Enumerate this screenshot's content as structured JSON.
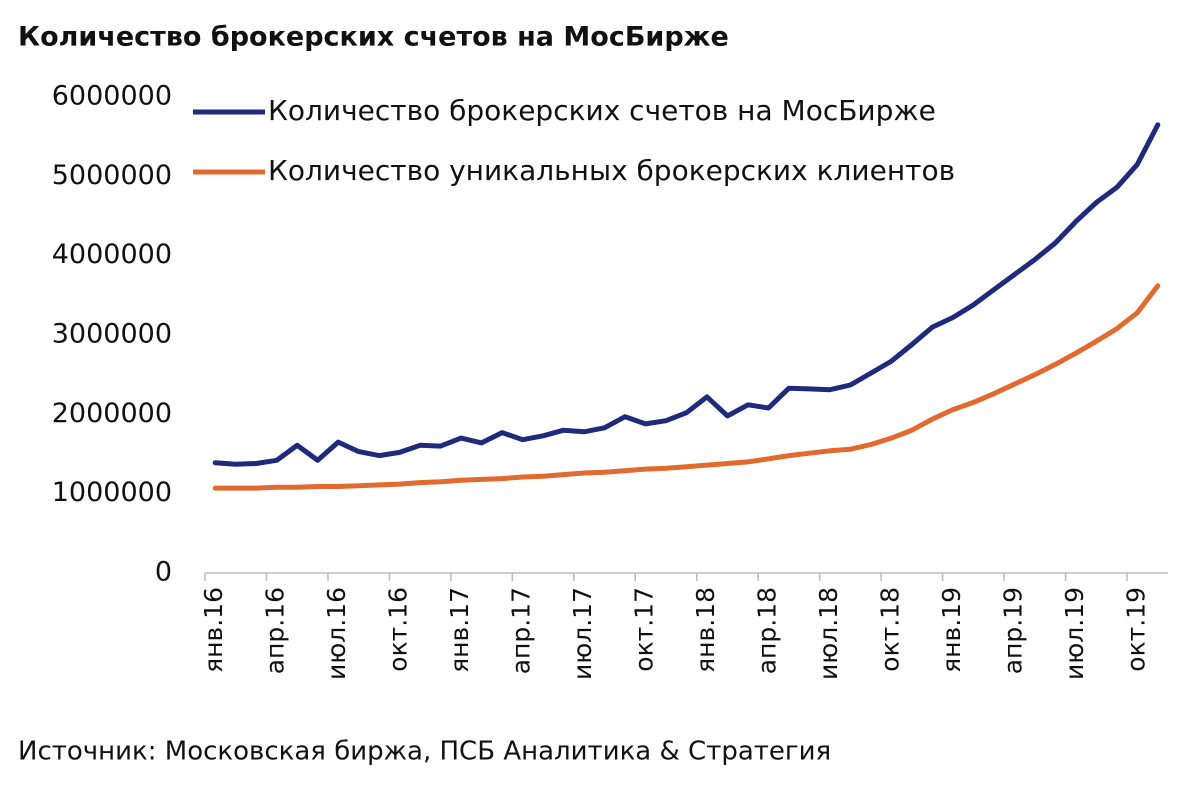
{
  "chart_data": {
    "type": "line",
    "title": "Количество брокерских счетов на МосБирже",
    "source": "Источник: Московская биржа, ПСБ Аналитика & Стратегия",
    "categories": [
      "янв.16",
      null,
      null,
      "апр.16",
      null,
      null,
      "июл.16",
      null,
      null,
      "окт.16",
      null,
      null,
      "янв.17",
      null,
      null,
      "апр.17",
      null,
      null,
      "июл.17",
      null,
      null,
      "окт.17",
      null,
      null,
      "янв.18",
      null,
      null,
      "апр.18",
      null,
      null,
      "июл.18",
      null,
      null,
      "окт.18",
      null,
      null,
      "янв.19",
      null,
      null,
      "апр.19",
      null,
      null,
      "июл.19",
      null,
      null,
      "окт.19",
      null
    ],
    "series": [
      {
        "name": "Количество брокерских счетов на МосБирже",
        "color": "#1f2a7c",
        "values": [
          1390000,
          1370000,
          1380000,
          1420000,
          1610000,
          1420000,
          1650000,
          1530000,
          1480000,
          1520000,
          1610000,
          1600000,
          1700000,
          1640000,
          1770000,
          1680000,
          1730000,
          1800000,
          1780000,
          1830000,
          1970000,
          1880000,
          1920000,
          2020000,
          2220000,
          1980000,
          2120000,
          2080000,
          2330000,
          2320000,
          2310000,
          2370000,
          2520000,
          2670000,
          2880000,
          3100000,
          3220000,
          3380000,
          3570000,
          3760000,
          3950000,
          4160000,
          4430000,
          4670000,
          4860000,
          5150000,
          5650000
        ]
      },
      {
        "name": "Количество уникальных брокерских клиентов",
        "color": "#e36a2e",
        "values": [
          1070000,
          1070000,
          1070000,
          1080000,
          1080000,
          1090000,
          1090000,
          1100000,
          1110000,
          1120000,
          1140000,
          1150000,
          1170000,
          1180000,
          1190000,
          1210000,
          1220000,
          1240000,
          1260000,
          1270000,
          1290000,
          1310000,
          1320000,
          1340000,
          1360000,
          1380000,
          1400000,
          1440000,
          1480000,
          1510000,
          1540000,
          1560000,
          1620000,
          1700000,
          1800000,
          1940000,
          2060000,
          2150000,
          2260000,
          2380000,
          2500000,
          2630000,
          2770000,
          2920000,
          3080000,
          3280000,
          3620000
        ]
      }
    ],
    "ylim": [
      0,
      6000000
    ],
    "yticks": [
      0,
      1000000,
      2000000,
      3000000,
      4000000,
      5000000,
      6000000
    ],
    "grid": false,
    "legend": "top-left"
  }
}
